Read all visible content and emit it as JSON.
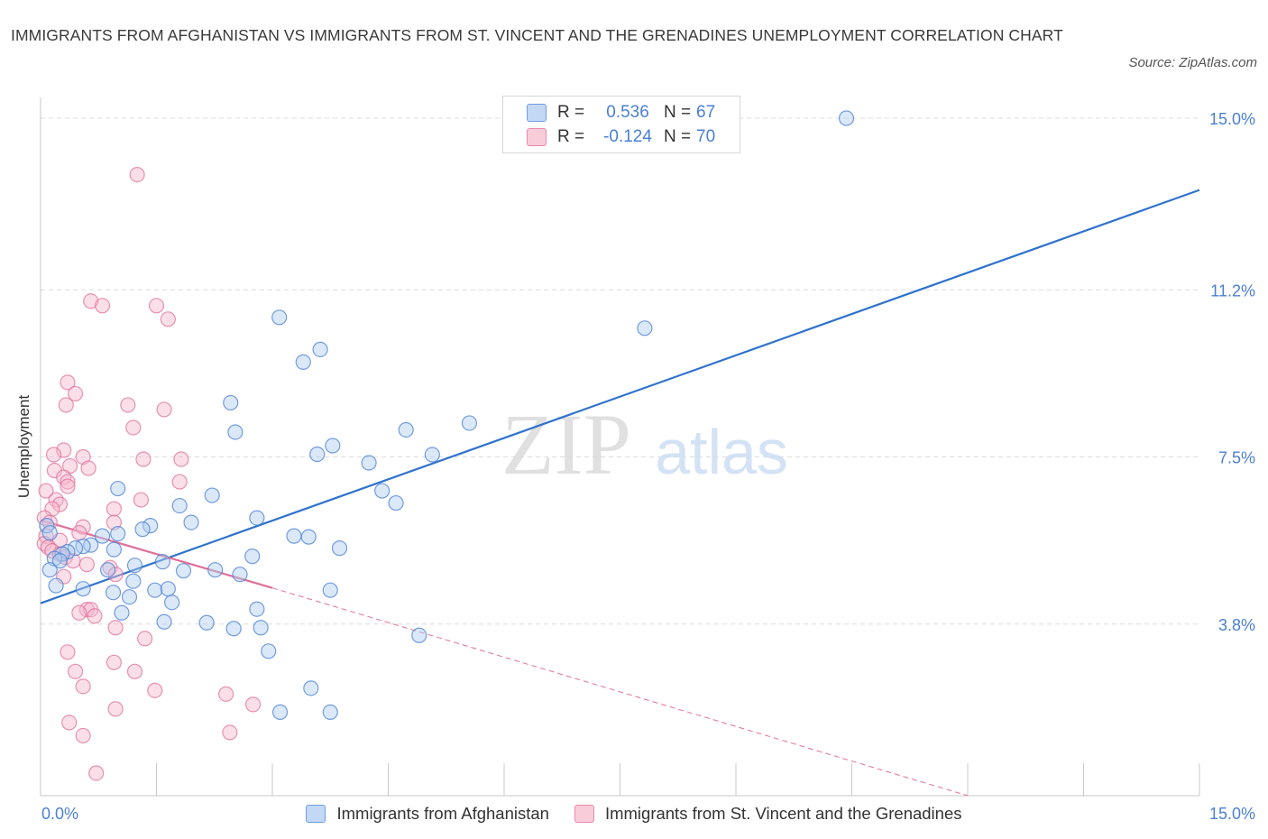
{
  "title": "IMMIGRANTS FROM AFGHANISTAN VS IMMIGRANTS FROM ST. VINCENT AND THE GRENADINES UNEMPLOYMENT CORRELATION CHART",
  "source": "Source: ZipAtlas.com",
  "watermark": {
    "zip": "ZIP",
    "atlas": "atlas"
  },
  "legend_top": {
    "rows": [
      {
        "r_label": "R =",
        "r_value": "0.536",
        "n_label": "N =",
        "n_value": "67"
      },
      {
        "r_label": "R =",
        "r_value": "-0.124",
        "n_label": "N =",
        "n_value": "70"
      }
    ]
  },
  "colors": {
    "blue": "#4a7fd4",
    "blue_fill": "#aecbf0",
    "blue_line": "#2f72cc",
    "pink": "#e0709a",
    "pink_fill": "#f5b8cb",
    "pink_line": "#e0709a",
    "axis_text": "#4a7fd4",
    "grid": "#dcdcdc"
  },
  "chart_data": {
    "type": "scatter",
    "title": "IMMIGRANTS FROM AFGHANISTAN VS IMMIGRANTS FROM ST. VINCENT AND THE GRENADINES UNEMPLOYMENT CORRELATION CHART",
    "xlabel": "",
    "ylabel": "Unemployment",
    "xlim": [
      0,
      15
    ],
    "ylim": [
      0,
      15.3
    ],
    "x_tick_labels": [
      "0.0%",
      "15.0%"
    ],
    "y_ticks": [
      3.8,
      7.5,
      11.2,
      15.0
    ],
    "y_tick_labels": [
      "3.8%",
      "7.5%",
      "11.2%",
      "15.0%"
    ],
    "grid": true,
    "legend_position": "top-center",
    "series": [
      {
        "name": "Immigrants from Afghanistan",
        "color": "#4a7fd4",
        "R": 0.536,
        "N": 67,
        "trend": {
          "x": [
            0,
            15
          ],
          "y": [
            4.26,
            13.41
          ]
        },
        "points": [
          [
            10.43,
            15.0
          ],
          [
            3.09,
            10.59
          ],
          [
            7.82,
            10.35
          ],
          [
            3.62,
            9.88
          ],
          [
            3.4,
            9.6
          ],
          [
            2.46,
            8.7
          ],
          [
            5.55,
            8.25
          ],
          [
            4.73,
            8.1
          ],
          [
            2.52,
            8.05
          ],
          [
            3.78,
            7.75
          ],
          [
            3.58,
            7.56
          ],
          [
            5.07,
            7.55
          ],
          [
            4.25,
            7.37
          ],
          [
            1.0,
            6.8
          ],
          [
            2.22,
            6.65
          ],
          [
            4.42,
            6.75
          ],
          [
            4.6,
            6.48
          ],
          [
            1.8,
            6.42
          ],
          [
            2.8,
            6.15
          ],
          [
            1.95,
            6.05
          ],
          [
            1.42,
            5.98
          ],
          [
            1.32,
            5.9
          ],
          [
            1.0,
            5.8
          ],
          [
            0.08,
            5.98
          ],
          [
            0.12,
            5.82
          ],
          [
            3.47,
            5.73
          ],
          [
            3.28,
            5.75
          ],
          [
            0.8,
            5.75
          ],
          [
            0.65,
            5.55
          ],
          [
            0.55,
            5.52
          ],
          [
            0.45,
            5.48
          ],
          [
            0.35,
            5.4
          ],
          [
            0.28,
            5.35
          ],
          [
            0.18,
            5.25
          ],
          [
            0.95,
            5.45
          ],
          [
            3.87,
            5.48
          ],
          [
            2.74,
            5.3
          ],
          [
            1.58,
            5.18
          ],
          [
            1.22,
            5.1
          ],
          [
            0.12,
            5.0
          ],
          [
            0.25,
            5.2
          ],
          [
            2.26,
            5.0
          ],
          [
            0.87,
            5.0
          ],
          [
            1.85,
            4.98
          ],
          [
            2.58,
            4.9
          ],
          [
            1.2,
            4.75
          ],
          [
            0.2,
            4.65
          ],
          [
            0.55,
            4.58
          ],
          [
            1.48,
            4.55
          ],
          [
            1.65,
            4.58
          ],
          [
            0.94,
            4.5
          ],
          [
            1.15,
            4.4
          ],
          [
            1.7,
            4.28
          ],
          [
            2.8,
            4.13
          ],
          [
            1.05,
            4.05
          ],
          [
            1.6,
            3.85
          ],
          [
            2.15,
            3.83
          ],
          [
            2.5,
            3.7
          ],
          [
            2.85,
            3.72
          ],
          [
            4.9,
            3.55
          ],
          [
            3.75,
            4.55
          ],
          [
            2.95,
            3.2
          ],
          [
            3.5,
            2.38
          ],
          [
            3.1,
            1.85
          ],
          [
            3.75,
            1.85
          ]
        ]
      },
      {
        "name": "Immigrants from St. Vincent and the Grenadines",
        "color": "#e0709a",
        "R": -0.124,
        "N": 70,
        "trend": {
          "x": [
            0,
            3.0
          ],
          "y": [
            6.1,
            4.6
          ]
        },
        "trend_extended": {
          "x": [
            3.0,
            12.0
          ],
          "y": [
            4.6,
            0.0
          ]
        },
        "points": [
          [
            1.25,
            13.75
          ],
          [
            0.65,
            10.95
          ],
          [
            0.8,
            10.85
          ],
          [
            1.5,
            10.85
          ],
          [
            1.65,
            10.55
          ],
          [
            0.35,
            9.15
          ],
          [
            0.45,
            8.9
          ],
          [
            0.33,
            8.65
          ],
          [
            1.13,
            8.65
          ],
          [
            1.6,
            8.55
          ],
          [
            1.2,
            8.15
          ],
          [
            0.3,
            7.65
          ],
          [
            0.17,
            7.55
          ],
          [
            0.55,
            7.5
          ],
          [
            1.82,
            7.45
          ],
          [
            1.33,
            7.45
          ],
          [
            0.38,
            7.3
          ],
          [
            0.62,
            7.25
          ],
          [
            0.18,
            7.2
          ],
          [
            0.3,
            7.05
          ],
          [
            0.35,
            6.95
          ],
          [
            1.8,
            6.95
          ],
          [
            0.07,
            6.75
          ],
          [
            0.35,
            6.85
          ],
          [
            0.2,
            6.55
          ],
          [
            0.25,
            6.45
          ],
          [
            1.3,
            6.55
          ],
          [
            0.15,
            6.35
          ],
          [
            0.95,
            6.35
          ],
          [
            0.05,
            6.15
          ],
          [
            0.12,
            6.05
          ],
          [
            0.95,
            6.05
          ],
          [
            0.55,
            5.95
          ],
          [
            0.5,
            5.82
          ],
          [
            0.07,
            5.75
          ],
          [
            0.25,
            5.65
          ],
          [
            0.05,
            5.58
          ],
          [
            0.1,
            5.5
          ],
          [
            0.15,
            5.42
          ],
          [
            0.25,
            5.35
          ],
          [
            0.32,
            5.28
          ],
          [
            0.42,
            5.2
          ],
          [
            0.6,
            5.12
          ],
          [
            0.9,
            5.05
          ],
          [
            0.97,
            4.9
          ],
          [
            0.3,
            4.85
          ],
          [
            0.6,
            4.12
          ],
          [
            0.65,
            4.12
          ],
          [
            0.7,
            3.98
          ],
          [
            0.5,
            4.05
          ],
          [
            0.97,
            3.72
          ],
          [
            1.35,
            3.48
          ],
          [
            0.35,
            3.18
          ],
          [
            0.95,
            2.95
          ],
          [
            0.45,
            2.75
          ],
          [
            1.22,
            2.75
          ],
          [
            1.48,
            2.33
          ],
          [
            0.55,
            2.42
          ],
          [
            2.4,
            2.25
          ],
          [
            2.75,
            2.02
          ],
          [
            0.97,
            1.92
          ],
          [
            0.37,
            1.62
          ],
          [
            0.55,
            1.33
          ],
          [
            2.45,
            1.4
          ],
          [
            0.72,
            0.5
          ]
        ]
      }
    ]
  },
  "bottom_legend": [
    {
      "label": "Immigrants from Afghanistan"
    },
    {
      "label": "Immigrants from St. Vincent and the Grenadines"
    }
  ]
}
